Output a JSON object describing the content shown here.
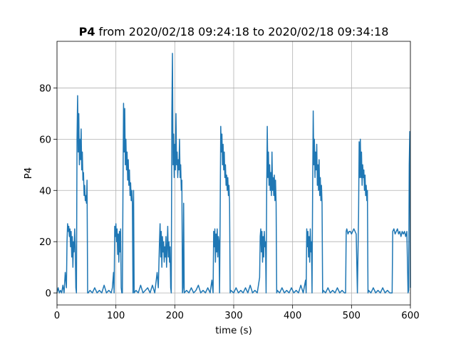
{
  "chart_data": {
    "type": "line",
    "title_bold": "P4",
    "title": "from 2020/02/18 09:24:18 to 2020/02/18 09:34:18",
    "xlabel": "time (s)",
    "ylabel": "P4",
    "xlim": [
      0,
      600
    ],
    "ylim": [
      -4.7,
      98.2
    ],
    "xticks": [
      0,
      100,
      200,
      300,
      400,
      500,
      600
    ],
    "yticks": [
      0,
      20,
      40,
      60,
      80
    ],
    "grid": true,
    "color": "#1f77b4",
    "x": [
      0,
      2,
      4,
      6,
      8,
      10,
      12,
      14,
      16,
      17,
      18,
      19,
      20,
      21,
      22,
      23,
      24,
      25,
      26,
      27,
      28,
      29,
      30,
      31,
      32,
      33,
      34,
      35,
      36,
      37,
      38,
      39,
      40,
      41,
      42,
      43,
      44,
      45,
      46,
      47,
      48,
      49,
      50,
      51,
      52,
      53,
      56,
      60,
      64,
      68,
      72,
      76,
      80,
      84,
      88,
      92,
      94,
      96,
      97,
      98,
      99,
      100,
      101,
      102,
      103,
      104,
      105,
      106,
      107,
      108,
      109,
      110,
      111,
      112,
      113,
      114,
      115,
      116,
      117,
      118,
      119,
      120,
      121,
      122,
      123,
      124,
      125,
      126,
      127,
      128,
      129,
      130,
      131,
      134,
      138,
      142,
      146,
      150,
      154,
      158,
      162,
      166,
      170,
      172,
      174,
      175,
      176,
      177,
      178,
      179,
      180,
      181,
      182,
      183,
      184,
      185,
      186,
      187,
      188,
      189,
      190,
      191,
      192,
      193,
      194,
      195,
      196,
      197,
      198,
      199,
      200,
      201,
      202,
      203,
      204,
      205,
      206,
      207,
      208,
      209,
      210,
      211,
      212,
      213,
      214,
      215,
      216,
      220,
      224,
      228,
      232,
      236,
      240,
      244,
      248,
      252,
      256,
      260,
      263,
      265,
      266,
      267,
      268,
      269,
      270,
      271,
      272,
      273,
      274,
      275,
      276,
      277,
      278,
      279,
      280,
      281,
      282,
      283,
      284,
      285,
      286,
      287,
      288,
      289,
      290,
      291,
      292,
      293,
      294,
      295,
      300,
      304,
      308,
      312,
      316,
      320,
      324,
      328,
      332,
      336,
      340,
      344,
      345,
      346,
      347,
      348,
      349,
      350,
      351,
      352,
      353,
      354,
      355,
      356,
      357,
      358,
      359,
      360,
      361,
      362,
      363,
      364,
      365,
      366,
      367,
      368,
      369,
      370,
      371,
      372,
      373,
      374,
      378,
      382,
      386,
      390,
      394,
      398,
      402,
      406,
      410,
      414,
      418,
      422,
      423,
      424,
      425,
      426,
      427,
      428,
      429,
      430,
      431,
      432,
      433,
      434,
      435,
      436,
      437,
      438,
      439,
      440,
      441,
      442,
      443,
      444,
      445,
      446,
      447,
      448,
      449,
      450,
      451,
      452,
      456,
      460,
      464,
      468,
      472,
      476,
      480,
      484,
      488,
      490,
      491,
      492,
      494,
      496,
      498,
      500,
      502,
      504,
      506,
      508,
      510,
      512,
      513,
      514,
      515,
      516,
      517,
      518,
      519,
      520,
      521,
      522,
      523,
      524,
      525,
      526,
      527,
      528,
      529,
      533,
      537,
      541,
      545,
      549,
      553,
      557,
      561,
      565,
      569,
      570,
      572,
      574,
      576,
      578,
      580,
      582,
      584,
      586,
      588,
      590,
      592,
      594,
      596,
      597,
      598,
      599,
      600
    ],
    "values": [
      0,
      2,
      0,
      1,
      0,
      3,
      0,
      8,
      2,
      20,
      27,
      24,
      26,
      22,
      25,
      18,
      24,
      14,
      22,
      10,
      20,
      16,
      25,
      18,
      2,
      0,
      60,
      77,
      55,
      70,
      50,
      60,
      52,
      64,
      48,
      55,
      44,
      47,
      38,
      42,
      36,
      38,
      35,
      44,
      0,
      0,
      1,
      0,
      2,
      0,
      1,
      0,
      3,
      0,
      1,
      0,
      2,
      8,
      0,
      26,
      22,
      27,
      20,
      25,
      15,
      23,
      12,
      24,
      16,
      25,
      2,
      0,
      0,
      40,
      74,
      55,
      72,
      50,
      60,
      48,
      55,
      44,
      52,
      42,
      48,
      38,
      43,
      36,
      40,
      35,
      0,
      40,
      0,
      1,
      0,
      3,
      0,
      1,
      2,
      0,
      3,
      0,
      8,
      2,
      20,
      27,
      14,
      24,
      10,
      22,
      16,
      20,
      12,
      18,
      14,
      22,
      10,
      18,
      26,
      14,
      20,
      12,
      18,
      2,
      0,
      70,
      93.5,
      50,
      62,
      45,
      58,
      48,
      70,
      50,
      55,
      45,
      52,
      48,
      60,
      45,
      50,
      40,
      44,
      0,
      2,
      35,
      0,
      1,
      0,
      2,
      0,
      1,
      3,
      0,
      1,
      0,
      2,
      0,
      5,
      0,
      24,
      18,
      25,
      12,
      23,
      16,
      25,
      14,
      22,
      20,
      0,
      30,
      65,
      55,
      62,
      50,
      58,
      48,
      55,
      45,
      50,
      42,
      46,
      40,
      45,
      38,
      42,
      35,
      0,
      1,
      0,
      2,
      0,
      1,
      0,
      2,
      0,
      3,
      0,
      1,
      0,
      6,
      22,
      25,
      16,
      24,
      12,
      22,
      14,
      24,
      18,
      20,
      0,
      40,
      65,
      45,
      55,
      42,
      50,
      40,
      47,
      38,
      55,
      40,
      45,
      38,
      46,
      36,
      44,
      35,
      0,
      1,
      0,
      2,
      0,
      1,
      0,
      2,
      0,
      1,
      0,
      3,
      0,
      5,
      0,
      25,
      18,
      24,
      14,
      22,
      12,
      25,
      16,
      20,
      0,
      40,
      71,
      50,
      60,
      45,
      55,
      48,
      58,
      42,
      50,
      40,
      52,
      38,
      45,
      36,
      42,
      35,
      0,
      1,
      0,
      2,
      0,
      1,
      0,
      2,
      0,
      1,
      0,
      0,
      24,
      25,
      23,
      24,
      24,
      23,
      24,
      25,
      24,
      23,
      0,
      30,
      59,
      45,
      60,
      45,
      55,
      42,
      50,
      45,
      48,
      40,
      46,
      38,
      42,
      36,
      40,
      0,
      1,
      0,
      2,
      0,
      1,
      0,
      2,
      0,
      1,
      0,
      0,
      24,
      25,
      23,
      24,
      25,
      23,
      24,
      22,
      24,
      23,
      24,
      22,
      24,
      0,
      1,
      50,
      63,
      2
    ]
  }
}
